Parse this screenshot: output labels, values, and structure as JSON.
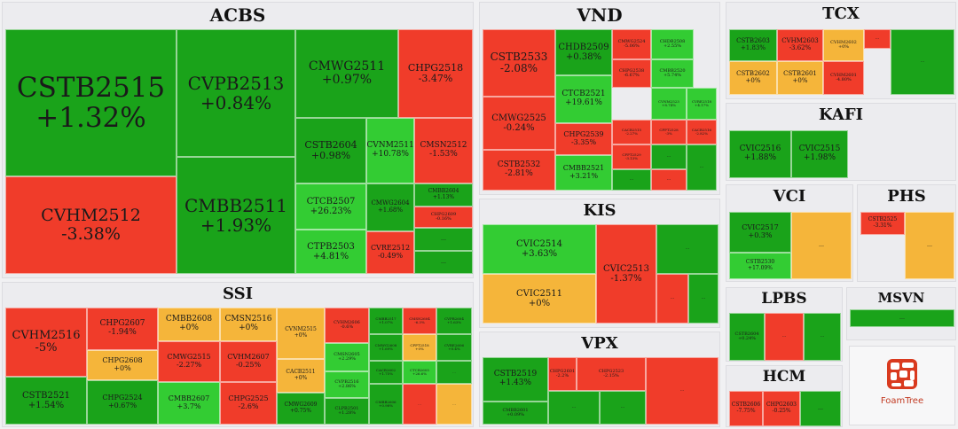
{
  "colors": {
    "green": "#1aa31a",
    "light_green": "#33cc33",
    "red": "#f03c2a",
    "orange": "#f5b53a",
    "empty": "#f3f3f3"
  },
  "chart_data": {
    "type": "treemap",
    "title": "",
    "logo_text": "FoamTree",
    "groups": [
      {
        "name": "ACBS",
        "items": [
          {
            "ticker": "CSTB2515",
            "change": "+1.32%",
            "value": 1.32
          },
          {
            "ticker": "CVHM2512",
            "change": "-3.38%",
            "value": -3.38
          },
          {
            "ticker": "CVPB2513",
            "change": "+0.84%",
            "value": 0.84
          },
          {
            "ticker": "CMBB2511",
            "change": "+1.93%",
            "value": 1.93
          },
          {
            "ticker": "CMWG2511",
            "change": "+0.97%",
            "value": 0.97
          },
          {
            "ticker": "CHPG2518",
            "change": "-3.47%",
            "value": -3.47
          },
          {
            "ticker": "CSTB2604",
            "change": "+0.98%",
            "value": 0.98
          },
          {
            "ticker": "CTCB2507",
            "change": "+26.23%",
            "value": 26.23
          },
          {
            "ticker": "CTPB2503",
            "change": "+4.81%",
            "value": 4.81
          },
          {
            "ticker": "CVNM2511",
            "change": "+10.78%",
            "value": 10.78
          },
          {
            "ticker": "CMSN2512",
            "change": "-1.53%",
            "value": -1.53
          },
          {
            "ticker": "CMWG2604",
            "change": "+1.68%",
            "value": 1.68
          },
          {
            "ticker": "CMBB2604",
            "change": "+1.13%",
            "value": 1.13
          },
          {
            "ticker": "CHPG2609",
            "change": "-0.16%",
            "value": -0.16
          },
          {
            "ticker": "CVRE2512",
            "change": "-0.49%",
            "value": -0.49
          },
          {
            "ticker": "…",
            "change": "",
            "value": 1
          },
          {
            "ticker": "…",
            "change": "",
            "value": 1
          }
        ]
      },
      {
        "name": "VND",
        "items": [
          {
            "ticker": "CSTB2533",
            "change": "-2.08%",
            "value": -2.08
          },
          {
            "ticker": "CMWG2525",
            "change": "-0.24%",
            "value": -0.24
          },
          {
            "ticker": "CSTB2532",
            "change": "-2.81%",
            "value": -2.81
          },
          {
            "ticker": "CHDB2509",
            "change": "+0.38%",
            "value": 0.38
          },
          {
            "ticker": "CTCB2521",
            "change": "+19.61%",
            "value": 19.61
          },
          {
            "ticker": "CHPG2539",
            "change": "-3.35%",
            "value": -3.35
          },
          {
            "ticker": "CMBB2521",
            "change": "+3.21%",
            "value": 3.21
          },
          {
            "ticker": "CMWG2524",
            "change": "-5.06%",
            "value": -5.06
          },
          {
            "ticker": "CHDB2508",
            "change": "+2.55%",
            "value": 2.55
          },
          {
            "ticker": "CHPG2538",
            "change": "-6.67%",
            "value": -6.67
          },
          {
            "ticker": "CMBB2520",
            "change": "+5.74%",
            "value": 5.74
          },
          {
            "ticker": "CVNM2523",
            "change": "+8.74%",
            "value": 8.74
          },
          {
            "ticker": "CVIB2515",
            "change": "+1.64%",
            "value": 1.64
          },
          {
            "ticker": "CVRE2518",
            "change": "+4.17%",
            "value": 4.17
          },
          {
            "ticker": "CACB2515",
            "change": "-2.27%",
            "value": -2.27
          },
          {
            "ticker": "CFPT2528",
            "change": "-3%",
            "value": -3
          },
          {
            "ticker": "CACB2516",
            "change": "-2.82%",
            "value": -2.82
          },
          {
            "ticker": "CFPT2529",
            "change": "-3.13%",
            "value": -3.13
          },
          {
            "ticker": "…",
            "change": "",
            "value": 1
          },
          {
            "ticker": "…",
            "change": "",
            "value": 1
          },
          {
            "ticker": "…",
            "change": "",
            "value": -1
          },
          {
            "ticker": "…",
            "change": "",
            "value": 1
          }
        ]
      },
      {
        "name": "TCX",
        "items": [
          {
            "ticker": "CSTB2603",
            "change": "+1.83%",
            "value": 1.83
          },
          {
            "ticker": "CVHM2603",
            "change": "-3.62%",
            "value": -3.62
          },
          {
            "ticker": "CVHM2602",
            "change": "+0%",
            "value": 0
          },
          {
            "ticker": "CSTB2602",
            "change": "+0%",
            "value": 0
          },
          {
            "ticker": "CSTB2601",
            "change": "+0%",
            "value": 0
          },
          {
            "ticker": "CVHM2601",
            "change": "-4.80%",
            "value": -4.8
          },
          {
            "ticker": "…",
            "change": "",
            "value": -1
          },
          {
            "ticker": "…",
            "change": "",
            "value": 1
          }
        ]
      },
      {
        "name": "KAFI",
        "items": [
          {
            "ticker": "CVIC2516",
            "change": "+1.88%",
            "value": 1.88
          },
          {
            "ticker": "CVIC2515",
            "change": "+1.98%",
            "value": 1.98
          }
        ]
      },
      {
        "name": "KIS",
        "items": [
          {
            "ticker": "CVIC2514",
            "change": "+3.63%",
            "value": 3.63
          },
          {
            "ticker": "CVIC2513",
            "change": "-1.37%",
            "value": -1.37
          },
          {
            "ticker": "CVIC2511",
            "change": "+0%",
            "value": 0
          },
          {
            "ticker": "…",
            "change": "",
            "value": 1
          },
          {
            "ticker": "…",
            "change": "",
            "value": -1
          },
          {
            "ticker": "…",
            "change": "",
            "value": 1
          }
        ]
      },
      {
        "name": "VCI",
        "items": [
          {
            "ticker": "CVIC2517",
            "change": "+0.3%",
            "value": 0.3
          },
          {
            "ticker": "CSTB2530",
            "change": "+17.09%",
            "value": 17.09
          },
          {
            "ticker": "…",
            "change": "",
            "value": 0
          }
        ]
      },
      {
        "name": "PHS",
        "items": [
          {
            "ticker": "CSTB2525",
            "change": "-3.31%",
            "value": -3.31
          },
          {
            "ticker": "…",
            "change": "",
            "value": 0
          }
        ]
      },
      {
        "name": "SSI",
        "items": [
          {
            "ticker": "CVHM2516",
            "change": "-5%",
            "value": -5
          },
          {
            "ticker": "CSTB2521",
            "change": "+1.54%",
            "value": 1.54
          },
          {
            "ticker": "CHPG2607",
            "change": "-1.94%",
            "value": -1.94
          },
          {
            "ticker": "CHPG2608",
            "change": "+0%",
            "value": 0
          },
          {
            "ticker": "CHPG2524",
            "change": "+0.67%",
            "value": 0.67
          },
          {
            "ticker": "CMBB2608",
            "change": "+0%",
            "value": 0
          },
          {
            "ticker": "CMWG2515",
            "change": "-2.27%",
            "value": -2.27
          },
          {
            "ticker": "CMBB2607",
            "change": "+3.7%",
            "value": 3.7
          },
          {
            "ticker": "CMSN2516",
            "change": "+0%",
            "value": 0
          },
          {
            "ticker": "CVHM2607",
            "change": "-0.25%",
            "value": -0.25
          },
          {
            "ticker": "CHPG2525",
            "change": "-2.6%",
            "value": -2.6
          },
          {
            "ticker": "CVNM2515",
            "change": "+0%",
            "value": 0
          },
          {
            "ticker": "CACB2511",
            "change": "+0%",
            "value": 0
          },
          {
            "ticker": "CMWG2609",
            "change": "+0.75%",
            "value": 0.75
          },
          {
            "ticker": "CVHM2606",
            "change": "-0.6%",
            "value": -0.6
          },
          {
            "ticker": "CMSN2605",
            "change": "+2.29%",
            "value": 2.29
          },
          {
            "ticker": "CVPB2516",
            "change": "+2.86%",
            "value": 2.86
          },
          {
            "ticker": "CLPB2501",
            "change": "+1.28%",
            "value": 1.28
          },
          {
            "ticker": "CMBB2517",
            "change": "+1.07%",
            "value": 1.07
          },
          {
            "ticker": "CMWG2608",
            "change": "+1.69%",
            "value": 1.69
          },
          {
            "ticker": "CACB2602",
            "change": "+1.75%",
            "value": 1.75
          },
          {
            "ticker": "CMBB2606",
            "change": "+0.98%",
            "value": 0.98
          },
          {
            "ticker": "CMSN2604",
            "change": "-6.3%",
            "value": -6.3
          },
          {
            "ticker": "CVPB2604",
            "change": "+1.63%",
            "value": 1.63
          },
          {
            "ticker": "CFPT2518",
            "change": "+0%",
            "value": 0
          },
          {
            "ticker": "CVRE2606",
            "change": "+0.4%",
            "value": 0.4
          },
          {
            "ticker": "CTCB2605",
            "change": "+26.6%",
            "value": 26.6
          },
          {
            "ticker": "…",
            "change": "",
            "value": -1
          },
          {
            "ticker": "…",
            "change": "",
            "value": 1
          },
          {
            "ticker": "…",
            "change": "",
            "value": 0
          }
        ]
      },
      {
        "name": "VPX",
        "items": [
          {
            "ticker": "CSTB2519",
            "change": "+1.43%",
            "value": 1.43
          },
          {
            "ticker": "CMBB2601",
            "change": "+0.09%",
            "value": 0.09
          },
          {
            "ticker": "CHPG2601",
            "change": "-2.2%",
            "value": -2.2
          },
          {
            "ticker": "CHPG2523",
            "change": "-2.15%",
            "value": -2.15
          },
          {
            "ticker": "…",
            "change": "",
            "value": 1
          },
          {
            "ticker": "…",
            "change": "",
            "value": 1
          },
          {
            "ticker": "…",
            "change": "",
            "value": -1
          }
        ]
      },
      {
        "name": "LPBS",
        "items": [
          {
            "ticker": "CSTB2604",
            "change": "+0.24%",
            "value": 0.24
          },
          {
            "ticker": "…",
            "change": "",
            "value": -1
          },
          {
            "ticker": "…",
            "change": "",
            "value": 1
          }
        ]
      },
      {
        "name": "MSVN",
        "items": [
          {
            "ticker": "…",
            "change": "",
            "value": 1
          }
        ]
      },
      {
        "name": "HCM",
        "items": [
          {
            "ticker": "CSTB2606",
            "change": "-7.75%",
            "value": -7.75
          },
          {
            "ticker": "CHPG2603",
            "change": "-0.25%",
            "value": -0.25
          },
          {
            "ticker": "…",
            "change": "",
            "value": 1
          }
        ]
      }
    ]
  }
}
